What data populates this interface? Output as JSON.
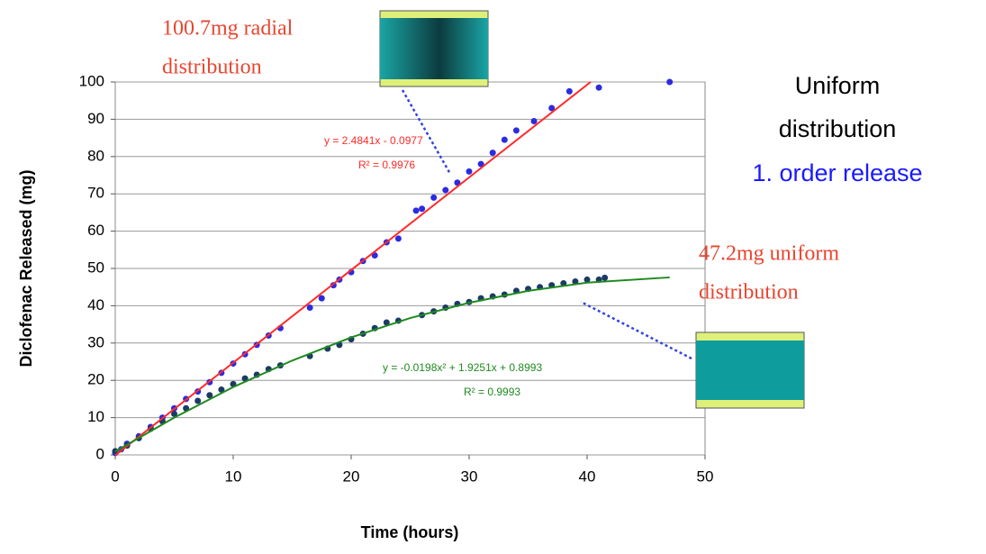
{
  "chart_data": {
    "type": "scatter",
    "xlabel": "Time (hours)",
    "ylabel": "Diclofenac Released (mg)",
    "xlim": [
      0,
      50
    ],
    "ylim": [
      0,
      100
    ],
    "xticks": [
      0,
      10,
      20,
      30,
      40,
      50
    ],
    "yticks": [
      0,
      10,
      20,
      30,
      40,
      50,
      60,
      70,
      80,
      90,
      100
    ],
    "grid": true,
    "series": [
      {
        "color": "#2b2be0",
        "x": [
          0,
          0.5,
          1,
          2,
          3,
          4,
          5,
          6,
          7,
          8,
          9,
          10,
          11,
          12,
          13,
          14,
          16.5,
          17.5,
          18.5,
          19,
          20,
          21,
          22,
          23,
          24,
          25.5,
          26,
          27,
          28,
          29,
          30,
          31,
          32,
          33,
          34,
          35.5,
          37,
          38.5,
          41,
          47
        ],
        "values": [
          0.5,
          1.5,
          3,
          5,
          7.5,
          10,
          12.5,
          15,
          17,
          19.5,
          22,
          24.5,
          27,
          29.5,
          32,
          34,
          39.5,
          42,
          45.5,
          47,
          49,
          52,
          53.5,
          57,
          58,
          65.5,
          66,
          69,
          71,
          73,
          76,
          78,
          81,
          84.5,
          87,
          89.5,
          93,
          97.5,
          98.5,
          100
        ]
      },
      {
        "color": "#1c3a66",
        "x": [
          0,
          1,
          2,
          3,
          4,
          5,
          6,
          7,
          8,
          9,
          10,
          11,
          12,
          13,
          14,
          16.5,
          18,
          19,
          20,
          21,
          22,
          23,
          24,
          26,
          27,
          28,
          29,
          30,
          31,
          32,
          33,
          34,
          35,
          36,
          37,
          38,
          39,
          40,
          41,
          41.5
        ],
        "values": [
          1,
          2.5,
          4.5,
          7,
          9,
          11,
          12.5,
          14.5,
          16,
          17.5,
          19,
          20.5,
          21.5,
          23,
          24,
          26.5,
          28.5,
          29.5,
          31,
          32.5,
          34,
          35.5,
          36,
          37.5,
          38.5,
          39.5,
          40.5,
          41,
          42,
          42.5,
          43,
          44,
          44.5,
          45,
          45.5,
          46,
          46.5,
          47,
          47,
          47.5
        ]
      }
    ],
    "trendlines": [
      {
        "color": "#ff2a2a",
        "x": [
          0,
          40.3
        ],
        "values": [
          -0.1,
          100
        ]
      },
      {
        "color": "#1f8a1f",
        "x": [
          0,
          5,
          10,
          15,
          20,
          25,
          30,
          35,
          40,
          47
        ],
        "values": [
          0.9,
          10.0,
          18.2,
          25.3,
          31.5,
          36.7,
          40.8,
          44.0,
          46.2,
          47.6
        ]
      }
    ],
    "annotations": [
      "100.7mg radial",
      "distribution",
      "y = 2.4841x - 0.0977",
      "R² = 0.9976",
      "Uniform",
      "distribution",
      "1. order release",
      "47.2mg uniform",
      "distribution",
      "y = -0.0198x² + 1.9251x + 0.8993",
      "R² = 0.9993"
    ]
  }
}
